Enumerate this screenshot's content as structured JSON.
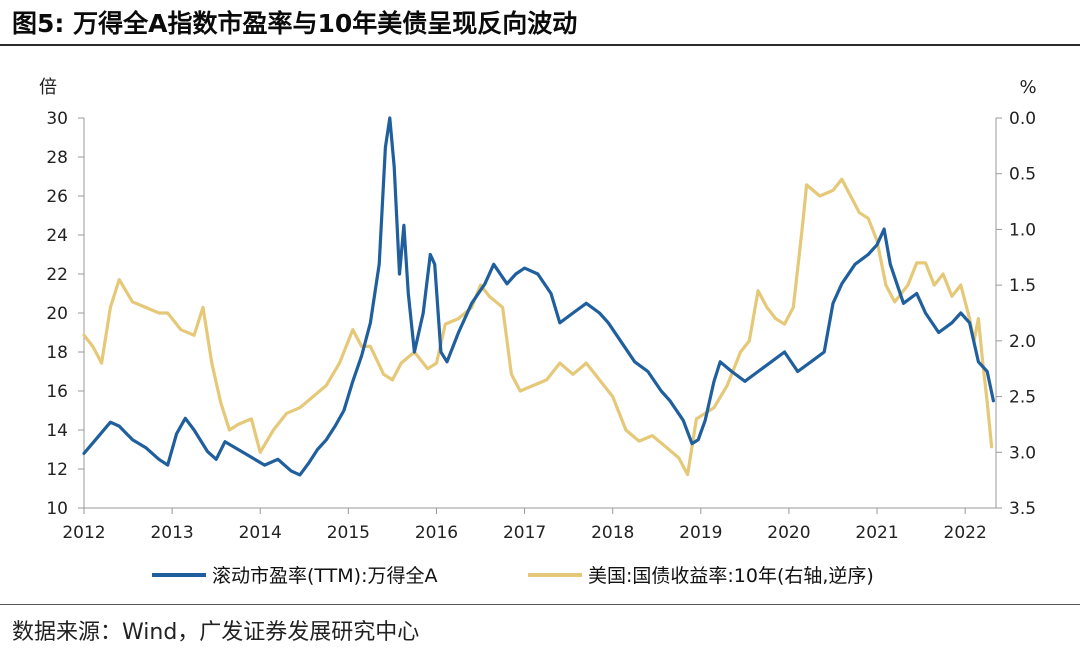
{
  "header": {
    "title": "图5:  万得全A指数市盈率与10年美债呈现反向波动"
  },
  "footer": {
    "source": "数据来源：Wind，广发证券发展研究中心"
  },
  "chart_data": {
    "type": "line",
    "x_ticks": [
      "2012",
      "2013",
      "2014",
      "2015",
      "2016",
      "2017",
      "2018",
      "2019",
      "2020",
      "2021",
      "2022"
    ],
    "x_range": [
      2012.0,
      2022.35
    ],
    "left_axis": {
      "unit": "倍",
      "range": [
        10,
        30
      ],
      "ticks": [
        "10",
        "12",
        "14",
        "16",
        "18",
        "20",
        "22",
        "24",
        "26",
        "28",
        "30"
      ]
    },
    "right_axis": {
      "unit": "%",
      "range": [
        0.0,
        3.5
      ],
      "inverted": true,
      "ticks": [
        "0.0",
        "0.5",
        "1.0",
        "1.5",
        "2.0",
        "2.5",
        "3.0",
        "3.5"
      ]
    },
    "series": [
      {
        "name": "滚动市盈率(TTM):万得全A",
        "axis": "left",
        "color": "#1f5f9e",
        "points": [
          [
            2012.0,
            12.8
          ],
          [
            2012.15,
            13.6
          ],
          [
            2012.3,
            14.4
          ],
          [
            2012.4,
            14.2
          ],
          [
            2012.55,
            13.5
          ],
          [
            2012.7,
            13.1
          ],
          [
            2012.85,
            12.5
          ],
          [
            2012.95,
            12.2
          ],
          [
            2013.05,
            13.8
          ],
          [
            2013.15,
            14.6
          ],
          [
            2013.25,
            14.0
          ],
          [
            2013.4,
            12.9
          ],
          [
            2013.5,
            12.5
          ],
          [
            2013.6,
            13.4
          ],
          [
            2013.75,
            13.0
          ],
          [
            2013.9,
            12.6
          ],
          [
            2014.05,
            12.2
          ],
          [
            2014.2,
            12.5
          ],
          [
            2014.35,
            11.9
          ],
          [
            2014.45,
            11.7
          ],
          [
            2014.55,
            12.3
          ],
          [
            2014.65,
            13.0
          ],
          [
            2014.75,
            13.5
          ],
          [
            2014.85,
            14.2
          ],
          [
            2014.95,
            15.0
          ],
          [
            2015.05,
            16.5
          ],
          [
            2015.15,
            17.8
          ],
          [
            2015.25,
            19.5
          ],
          [
            2015.35,
            22.5
          ],
          [
            2015.42,
            28.5
          ],
          [
            2015.47,
            30.0
          ],
          [
            2015.52,
            27.5
          ],
          [
            2015.58,
            22.0
          ],
          [
            2015.63,
            24.5
          ],
          [
            2015.68,
            21.0
          ],
          [
            2015.75,
            18.0
          ],
          [
            2015.85,
            20.0
          ],
          [
            2015.93,
            23.0
          ],
          [
            2015.98,
            22.5
          ],
          [
            2016.05,
            18.0
          ],
          [
            2016.12,
            17.5
          ],
          [
            2016.25,
            19.0
          ],
          [
            2016.4,
            20.5
          ],
          [
            2016.55,
            21.5
          ],
          [
            2016.65,
            22.5
          ],
          [
            2016.8,
            21.5
          ],
          [
            2016.9,
            22.0
          ],
          [
            2017.0,
            22.3
          ],
          [
            2017.15,
            22.0
          ],
          [
            2017.3,
            21.0
          ],
          [
            2017.4,
            19.5
          ],
          [
            2017.55,
            20.0
          ],
          [
            2017.7,
            20.5
          ],
          [
            2017.85,
            20.0
          ],
          [
            2017.95,
            19.5
          ],
          [
            2018.1,
            18.5
          ],
          [
            2018.25,
            17.5
          ],
          [
            2018.4,
            17.0
          ],
          [
            2018.55,
            16.0
          ],
          [
            2018.65,
            15.5
          ],
          [
            2018.8,
            14.5
          ],
          [
            2018.9,
            13.3
          ],
          [
            2018.97,
            13.5
          ],
          [
            2019.05,
            14.5
          ],
          [
            2019.15,
            16.5
          ],
          [
            2019.22,
            17.5
          ],
          [
            2019.35,
            17.0
          ],
          [
            2019.5,
            16.5
          ],
          [
            2019.65,
            17.0
          ],
          [
            2019.8,
            17.5
          ],
          [
            2019.95,
            18.0
          ],
          [
            2020.1,
            17.0
          ],
          [
            2020.25,
            17.5
          ],
          [
            2020.4,
            18.0
          ],
          [
            2020.5,
            20.5
          ],
          [
            2020.6,
            21.5
          ],
          [
            2020.75,
            22.5
          ],
          [
            2020.9,
            23.0
          ],
          [
            2021.0,
            23.5
          ],
          [
            2021.08,
            24.3
          ],
          [
            2021.15,
            22.5
          ],
          [
            2021.3,
            20.5
          ],
          [
            2021.45,
            21.0
          ],
          [
            2021.55,
            20.0
          ],
          [
            2021.7,
            19.0
          ],
          [
            2021.85,
            19.5
          ],
          [
            2021.95,
            20.0
          ],
          [
            2022.05,
            19.5
          ],
          [
            2022.15,
            17.5
          ],
          [
            2022.25,
            17.0
          ],
          [
            2022.32,
            15.5
          ]
        ]
      },
      {
        "name": "美国:国债收益率:10年(右轴,逆序)",
        "axis": "right",
        "color": "#e5c878",
        "points": [
          [
            2012.0,
            1.95
          ],
          [
            2012.1,
            2.05
          ],
          [
            2012.2,
            2.2
          ],
          [
            2012.3,
            1.7
          ],
          [
            2012.4,
            1.45
          ],
          [
            2012.55,
            1.65
          ],
          [
            2012.7,
            1.7
          ],
          [
            2012.85,
            1.75
          ],
          [
            2012.95,
            1.75
          ],
          [
            2013.1,
            1.9
          ],
          [
            2013.25,
            1.95
          ],
          [
            2013.35,
            1.7
          ],
          [
            2013.45,
            2.2
          ],
          [
            2013.55,
            2.55
          ],
          [
            2013.65,
            2.8
          ],
          [
            2013.75,
            2.75
          ],
          [
            2013.9,
            2.7
          ],
          [
            2014.0,
            3.0
          ],
          [
            2014.15,
            2.8
          ],
          [
            2014.3,
            2.65
          ],
          [
            2014.45,
            2.6
          ],
          [
            2014.6,
            2.5
          ],
          [
            2014.75,
            2.4
          ],
          [
            2014.9,
            2.2
          ],
          [
            2015.05,
            1.9
          ],
          [
            2015.15,
            2.05
          ],
          [
            2015.25,
            2.05
          ],
          [
            2015.4,
            2.3
          ],
          [
            2015.5,
            2.35
          ],
          [
            2015.6,
            2.2
          ],
          [
            2015.75,
            2.1
          ],
          [
            2015.9,
            2.25
          ],
          [
            2016.0,
            2.2
          ],
          [
            2016.1,
            1.85
          ],
          [
            2016.25,
            1.8
          ],
          [
            2016.4,
            1.7
          ],
          [
            2016.5,
            1.5
          ],
          [
            2016.6,
            1.6
          ],
          [
            2016.75,
            1.7
          ],
          [
            2016.85,
            2.3
          ],
          [
            2016.95,
            2.45
          ],
          [
            2017.1,
            2.4
          ],
          [
            2017.25,
            2.35
          ],
          [
            2017.4,
            2.2
          ],
          [
            2017.55,
            2.3
          ],
          [
            2017.7,
            2.2
          ],
          [
            2017.85,
            2.35
          ],
          [
            2018.0,
            2.5
          ],
          [
            2018.15,
            2.8
          ],
          [
            2018.3,
            2.9
          ],
          [
            2018.45,
            2.85
          ],
          [
            2018.6,
            2.95
          ],
          [
            2018.75,
            3.05
          ],
          [
            2018.85,
            3.2
          ],
          [
            2018.95,
            2.7
          ],
          [
            2019.05,
            2.65
          ],
          [
            2019.15,
            2.6
          ],
          [
            2019.3,
            2.4
          ],
          [
            2019.45,
            2.1
          ],
          [
            2019.55,
            2.0
          ],
          [
            2019.65,
            1.55
          ],
          [
            2019.75,
            1.7
          ],
          [
            2019.85,
            1.8
          ],
          [
            2019.95,
            1.85
          ],
          [
            2020.05,
            1.7
          ],
          [
            2020.15,
            1.0
          ],
          [
            2020.2,
            0.6
          ],
          [
            2020.35,
            0.7
          ],
          [
            2020.5,
            0.65
          ],
          [
            2020.6,
            0.55
          ],
          [
            2020.7,
            0.7
          ],
          [
            2020.8,
            0.85
          ],
          [
            2020.9,
            0.9
          ],
          [
            2021.0,
            1.1
          ],
          [
            2021.1,
            1.5
          ],
          [
            2021.2,
            1.65
          ],
          [
            2021.35,
            1.5
          ],
          [
            2021.45,
            1.3
          ],
          [
            2021.55,
            1.3
          ],
          [
            2021.65,
            1.5
          ],
          [
            2021.75,
            1.4
          ],
          [
            2021.85,
            1.6
          ],
          [
            2021.95,
            1.5
          ],
          [
            2022.05,
            1.8
          ],
          [
            2022.1,
            2.0
          ],
          [
            2022.15,
            1.8
          ],
          [
            2022.2,
            2.2
          ],
          [
            2022.25,
            2.55
          ],
          [
            2022.3,
            2.95
          ]
        ]
      }
    ]
  }
}
